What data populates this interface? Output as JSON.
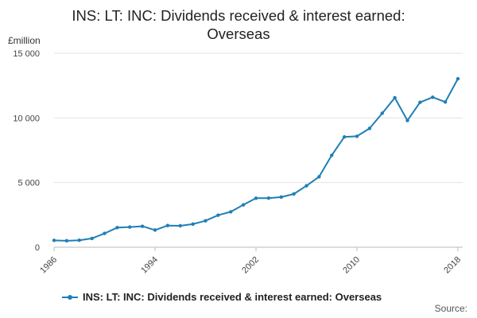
{
  "chart_data": {
    "type": "line",
    "title_lines": [
      "INS: LT: INC: Dividends received & interest earned:",
      "Overseas"
    ],
    "ylabel": "£million",
    "xlabel": "",
    "ylim": [
      0,
      15000
    ],
    "xlim": [
      1986,
      2018
    ],
    "y_ticks": [
      {
        "value": 0,
        "label": "0"
      },
      {
        "value": 5000,
        "label": "5 000"
      },
      {
        "value": 10000,
        "label": "10 000"
      },
      {
        "value": 15000,
        "label": "15 000"
      }
    ],
    "x_ticks": [
      {
        "value": 1986,
        "label": "1986"
      },
      {
        "value": 1994,
        "label": "1994"
      },
      {
        "value": 2002,
        "label": "2002"
      },
      {
        "value": 2010,
        "label": "2010"
      },
      {
        "value": 2018,
        "label": "2018"
      }
    ],
    "grid": "horizontal",
    "legend_position": "bottom-left",
    "series": [
      {
        "name": "INS: LT: INC: Dividends received & interest earned: Overseas",
        "color": "#1f7fb6",
        "x": [
          1986,
          1987,
          1988,
          1989,
          1990,
          1991,
          1992,
          1993,
          1994,
          1995,
          1996,
          1997,
          1998,
          1999,
          2000,
          2001,
          2002,
          2003,
          2004,
          2005,
          2006,
          2007,
          2008,
          2009,
          2010,
          2011,
          2012,
          2013,
          2014,
          2015,
          2016,
          2017,
          2018
        ],
        "values": [
          530,
          500,
          540,
          680,
          1070,
          1520,
          1560,
          1620,
          1330,
          1680,
          1660,
          1790,
          2050,
          2480,
          2740,
          3280,
          3790,
          3800,
          3880,
          4120,
          4750,
          5450,
          7110,
          8530,
          8580,
          9190,
          10360,
          11560,
          9800,
          11210,
          11600,
          11230,
          13030
        ]
      }
    ],
    "source_label": "Source:"
  }
}
